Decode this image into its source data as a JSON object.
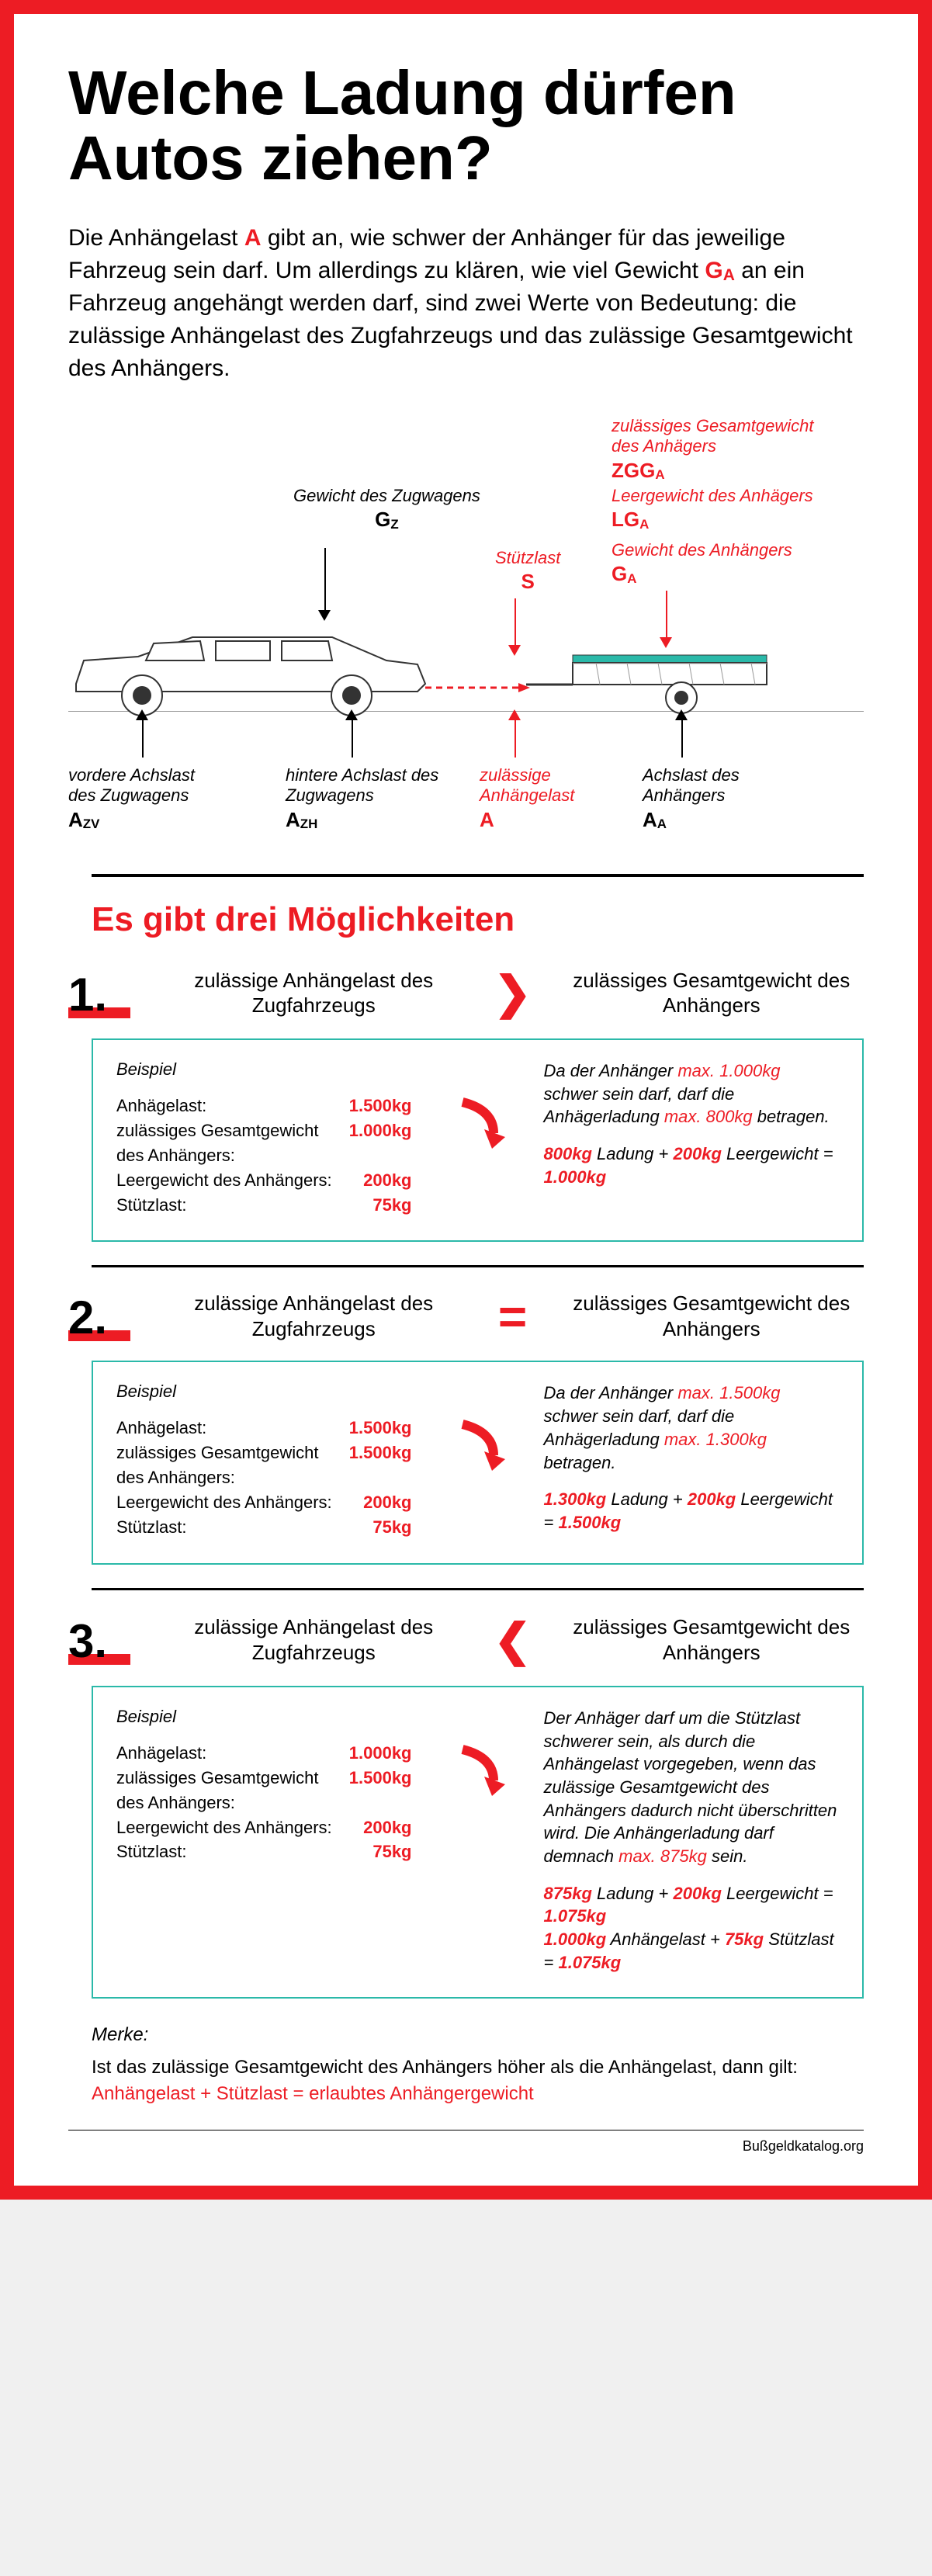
{
  "title": "Welche Ladung dürfen Autos ziehen?",
  "intro_pre": "Die Anhängelast ",
  "intro_A": "A",
  "intro_mid": " gibt an, wie schwer der Anhänger für das jeweilige Fahrzeug sein darf. Um allerdings zu klären, wie viel Gewicht ",
  "intro_GA": "G",
  "intro_GA_sub": "A",
  "intro_post": " an ein Fahrzeug angehängt werden darf, sind zwei Werte von Bedeutung: die zulässige Anhängelast des Zugfahrzeugs und das zulässige Gesamtgewicht des Anhängers.",
  "diag": {
    "gz_label": "Gewicht des Zugwagens",
    "gz_sym": "G",
    "gz_sub": "Z",
    "s_label": "Stützlast",
    "s_sym": "S",
    "zgga_label": "zulässiges Gesamtgewicht des Anhägers",
    "zgga_sym": "ZGG",
    "zgga_sub": "A",
    "lga_label": "Leergewicht des Anhägers",
    "lga_sym": "LG",
    "lga_sub": "A",
    "ga_label": "Gewicht des Anhängers",
    "ga_sym": "G",
    "ga_sub": "A",
    "azv_label": "vordere Achslast des Zugwagens",
    "azv_sym": "A",
    "azv_sub": "ZV",
    "azh_label": "hintere Achslast des Zugwagens",
    "azh_sym": "A",
    "azh_sub": "ZH",
    "a_label": "zulässige Anhängelast",
    "a_sym": "A",
    "aa_label": "Achslast des Anhängers",
    "aa_sym": "A",
    "aa_sub": "A"
  },
  "section_title": "Es gibt drei Möglichkeiten",
  "comp_left": "zulässige Anhängelast des Zugfahrzeugs",
  "comp_right": "zulässiges Gesamtgewicht des Anhängers",
  "case1": {
    "num": "1.",
    "op": "❯",
    "ex_title": "Beispiel",
    "rows": [
      {
        "l": "Anhägelast:",
        "v": "1.500kg"
      },
      {
        "l": "zulässiges Gesamtgewicht des Anhängers:",
        "v": "1.000kg"
      },
      {
        "l": "Leergewicht des Anhängers:",
        "v": "200kg"
      },
      {
        "l": "Stützlast:",
        "v": "75kg"
      }
    ],
    "right1a": "Da der Anhänger ",
    "right1b": "max. 1.000kg",
    "right1c": " schwer sein darf, darf die Anhägerladung ",
    "right1d": "max. 800kg",
    "right1e": " betragen.",
    "right2a": "800kg",
    "right2b": " Ladung + ",
    "right2c": "200kg",
    "right2d": " Leergewicht = ",
    "right2e": "1.000kg"
  },
  "case2": {
    "num": "2.",
    "op": "=",
    "ex_title": "Beispiel",
    "rows": [
      {
        "l": "Anhägelast:",
        "v": "1.500kg"
      },
      {
        "l": "zulässiges Gesamtgewicht des Anhängers:",
        "v": "1.500kg"
      },
      {
        "l": "Leergewicht des Anhängers:",
        "v": "200kg"
      },
      {
        "l": "Stützlast:",
        "v": "75kg"
      }
    ],
    "right1a": "Da der Anhänger ",
    "right1b": "max. 1.500kg",
    "right1c": " schwer sein darf, darf die Anhägerladung ",
    "right1d": "max. 1.300kg",
    "right1e": " betragen.",
    "right2a": "1.300kg",
    "right2b": " Ladung + ",
    "right2c": "200kg",
    "right2d": " Leergewicht = ",
    "right2e": "1.500kg"
  },
  "case3": {
    "num": "3.",
    "op": "❮",
    "ex_title": "Beispiel",
    "rows": [
      {
        "l": "Anhägelast:",
        "v": "1.000kg"
      },
      {
        "l": "zulässiges Gesamtgewicht des Anhängers:",
        "v": "1.500kg"
      },
      {
        "l": "Leergewicht des Anhängers:",
        "v": "200kg"
      },
      {
        "l": "Stützlast:",
        "v": "75kg"
      }
    ],
    "para1": "Der Anhäger darf um die Stützlast schwerer sein, als durch die Anhängelast vorgegeben, wenn das zulässige Gesamtgewicht des Anhängers dadurch nicht überschritten wird. Die Anhängerladung darf demnach ",
    "para1r": "max. 875kg",
    "para1e": " sein.",
    "l1a": "875kg",
    "l1b": " Ladung + ",
    "l1c": "200kg",
    "l1d": " Leergewicht = ",
    "l1e": "1.075kg",
    "l2a": "1.000kg",
    "l2b": " Anhängelast + ",
    "l2c": "75kg",
    "l2d": " Stützlast = ",
    "l2e": "1.075kg"
  },
  "merke_title": "Merke:",
  "merke_text": "Ist das zulässige Gesamtgewicht des Anhängers höher als die Anhängelast,  dann gilt:",
  "merke_eq": "Anhängelast + Stützlast = erlaubtes Anhängergewicht",
  "footer": "Bußgeldkatalog.org"
}
